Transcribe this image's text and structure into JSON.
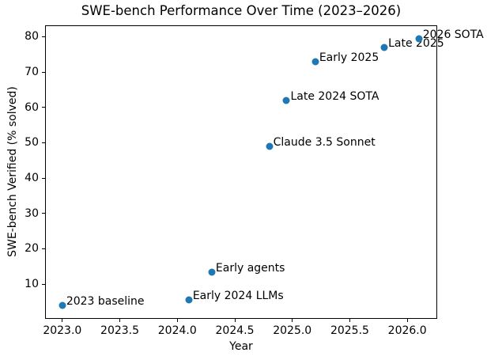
{
  "chart_data": {
    "type": "scatter",
    "title": "SWE-bench Performance Over Time (2023–2026)",
    "xlabel": "Year",
    "ylabel": "SWE-bench Verified (% solved)",
    "xlim": [
      2022.85,
      2026.26
    ],
    "ylim": [
      0.2,
      83.2
    ],
    "xticks": [
      2023.0,
      2023.5,
      2024.0,
      2024.5,
      2025.0,
      2025.5,
      2026.0
    ],
    "yticks": [
      10,
      20,
      30,
      40,
      50,
      60,
      70,
      80
    ],
    "grid": false,
    "legend": "none",
    "marker_color": "#1f77b4",
    "text_color": "#000000",
    "background_color": "#ffffff",
    "points": [
      {
        "x": 2023.0,
        "y": 4.0,
        "label": "2023 baseline"
      },
      {
        "x": 2024.1,
        "y": 5.5,
        "label": "Early 2024 LLMs"
      },
      {
        "x": 2024.3,
        "y": 13.5,
        "label": "Early agents"
      },
      {
        "x": 2024.8,
        "y": 49.0,
        "label": "Claude 3.5 Sonnet"
      },
      {
        "x": 2024.95,
        "y": 62.0,
        "label": "Late 2024 SOTA"
      },
      {
        "x": 2025.2,
        "y": 73.0,
        "label": "Early 2025"
      },
      {
        "x": 2025.8,
        "y": 77.0,
        "label": "Late 2025"
      },
      {
        "x": 2026.1,
        "y": 79.4,
        "label": "2026 SOTA"
      }
    ]
  }
}
